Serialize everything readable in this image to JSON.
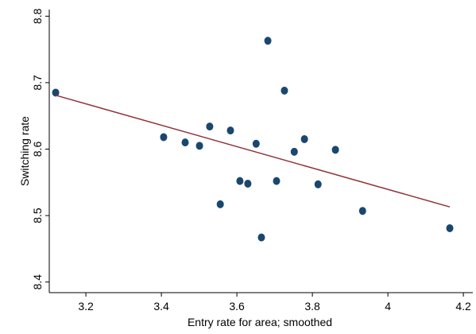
{
  "chart_data": {
    "type": "scatter",
    "xlabel": "Entry rate for area; smoothed",
    "ylabel": "Switching rate",
    "xlim": [
      3.103,
      4.225
    ],
    "ylim": [
      8.384,
      8.81
    ],
    "xticks": [
      3.2,
      3.4,
      3.6,
      3.8,
      4,
      4.2
    ],
    "yticks": [
      8.4,
      8.5,
      8.6,
      8.7,
      8.8
    ],
    "series": [
      {
        "color": "#1a476f",
        "x": [
          3.12,
          3.406,
          3.463,
          3.501,
          3.528,
          3.583,
          3.556,
          3.608,
          3.629,
          3.651,
          3.665,
          3.682,
          3.705,
          3.726,
          3.752,
          3.779,
          3.815,
          3.861,
          3.933,
          4.164
        ],
        "values": [
          8.685,
          8.618,
          8.61,
          8.605,
          8.634,
          8.628,
          8.517,
          8.552,
          8.548,
          8.608,
          8.467,
          8.763,
          8.552,
          8.688,
          8.596,
          8.615,
          8.547,
          8.599,
          8.507,
          8.481
        ]
      },
      {
        "type": "line",
        "color": "#90353b",
        "x": [
          3.12,
          4.164
        ],
        "values": [
          8.681,
          8.513
        ]
      }
    ]
  }
}
